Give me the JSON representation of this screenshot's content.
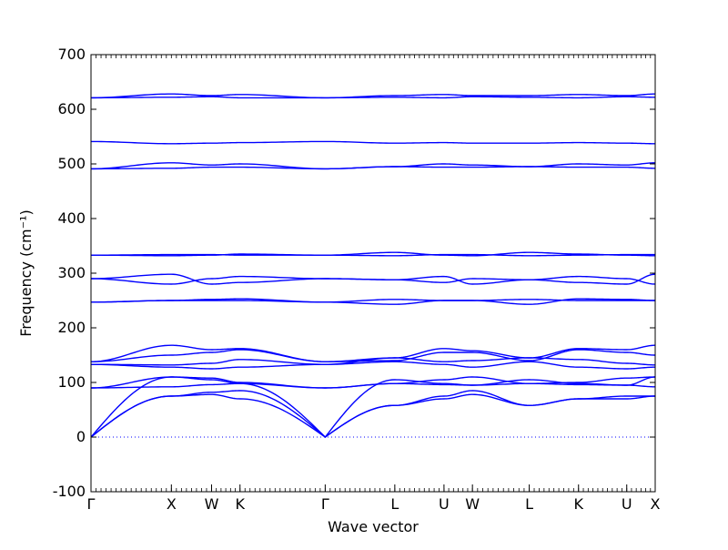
{
  "chart_data": {
    "type": "line",
    "xlabel": "Wave vector",
    "ylabel": "Frequency (cm⁻¹)",
    "ylim": [
      -100,
      700
    ],
    "yticks": [
      -100,
      0,
      100,
      200,
      300,
      400,
      500,
      600,
      700
    ],
    "grid": false,
    "legend": "none",
    "colors": {
      "bands": "#0000ff",
      "zero_line": "#0000ff",
      "axes": "#000000"
    },
    "kpath": [
      {
        "label": "Γ",
        "x": 0.0
      },
      {
        "label": "X",
        "x": 1.0
      },
      {
        "label": "W",
        "x": 1.5
      },
      {
        "label": "K",
        "x": 1.854
      },
      {
        "label": "Γ",
        "x": 2.914
      },
      {
        "label": "L",
        "x": 3.78
      },
      {
        "label": "U",
        "x": 4.392
      },
      {
        "label": "W",
        "x": 4.746
      },
      {
        "label": "L",
        "x": 5.453
      },
      {
        "label": "K",
        "x": 6.066
      },
      {
        "label": "U",
        "x": 6.666
      },
      {
        "label": "X",
        "x": 7.02
      }
    ],
    "series": [
      {
        "values": [
          0,
          75,
          78,
          70,
          0,
          58,
          70,
          78,
          58,
          70,
          70,
          75
        ]
      },
      {
        "values": [
          0,
          75,
          82,
          85,
          0,
          58,
          75,
          85,
          58,
          70,
          75,
          75
        ]
      },
      {
        "values": [
          0,
          110,
          105,
          98,
          0,
          105,
          98,
          95,
          105,
          98,
          95,
          110
        ]
      },
      {
        "values": [
          90,
          92,
          96,
          98,
          90,
          98,
          96,
          95,
          98,
          96,
          95,
          92
        ]
      },
      {
        "values": [
          90,
          110,
          108,
          100,
          90,
          98,
          105,
          110,
          98,
          100,
          108,
          110
        ]
      },
      {
        "values": [
          133,
          128,
          125,
          128,
          133,
          138,
          133,
          128,
          138,
          128,
          125,
          128
        ]
      },
      {
        "values": [
          133,
          132,
          135,
          142,
          133,
          145,
          138,
          140,
          145,
          142,
          135,
          132
        ]
      },
      {
        "values": [
          138,
          150,
          155,
          160,
          138,
          140,
          155,
          155,
          140,
          160,
          155,
          150
        ]
      },
      {
        "values": [
          138,
          168,
          160,
          162,
          138,
          145,
          162,
          158,
          145,
          162,
          160,
          168
        ]
      },
      {
        "values": [
          247,
          250,
          252,
          253,
          247,
          243,
          250,
          250,
          243,
          253,
          252,
          250
        ]
      },
      {
        "values": [
          247,
          250,
          250,
          250,
          247,
          252,
          250,
          250,
          252,
          250,
          250,
          250
        ]
      },
      {
        "values": [
          290,
          280,
          290,
          294,
          290,
          288,
          294,
          280,
          288,
          294,
          290,
          280
        ]
      },
      {
        "values": [
          290,
          298,
          280,
          283,
          290,
          288,
          283,
          290,
          288,
          283,
          280,
          298
        ]
      },
      {
        "values": [
          333,
          332,
          333,
          335,
          333,
          338,
          333,
          332,
          338,
          335,
          333,
          332
        ]
      },
      {
        "values": [
          333,
          334,
          334,
          333,
          333,
          332,
          334,
          334,
          332,
          333,
          334,
          334
        ]
      },
      {
        "values": [
          491,
          502,
          498,
          500,
          491,
          495,
          500,
          498,
          495,
          500,
          498,
          502
        ]
      },
      {
        "values": [
          491,
          492,
          494,
          494,
          491,
          495,
          494,
          494,
          495,
          494,
          494,
          492
        ]
      },
      {
        "values": [
          541,
          537,
          538,
          539,
          541,
          538,
          539,
          538,
          538,
          539,
          538,
          537
        ]
      },
      {
        "values": [
          621,
          622,
          623,
          621,
          621,
          622,
          621,
          623,
          622,
          621,
          623,
          622
        ]
      },
      {
        "values": [
          621,
          628,
          625,
          627,
          621,
          625,
          627,
          625,
          625,
          627,
          625,
          628
        ]
      }
    ]
  }
}
